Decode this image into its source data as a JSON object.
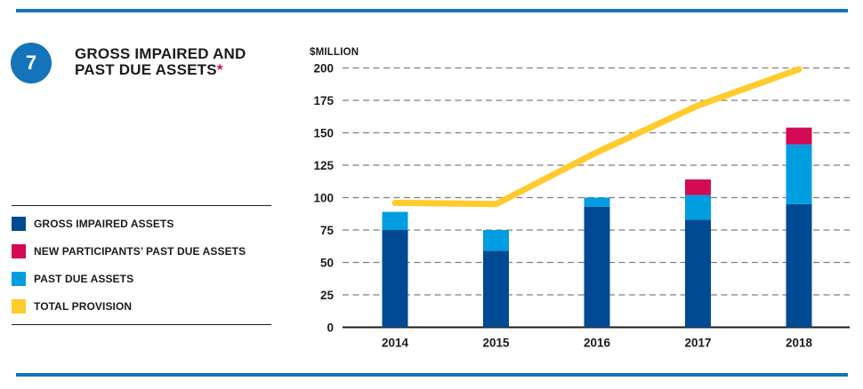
{
  "header": {
    "number": "7",
    "title_line1": "GROSS IMPAIRED AND",
    "title_line2": "PAST DUE ASSETS",
    "title_asterisk": "*"
  },
  "legend": {
    "items": [
      {
        "label": "GROSS IMPAIRED ASSETS",
        "color": "#004a94"
      },
      {
        "label": "NEW PARTICIPANTS’ PAST DUE ASSETS",
        "color": "#d40a55"
      },
      {
        "label": "PAST DUE ASSETS",
        "color": "#009de0"
      },
      {
        "label": "TOTAL PROVISION",
        "color": "#ffcb2d"
      }
    ]
  },
  "chart_data": {
    "type": "bar",
    "subtype": "stacked-bars-with-line-overlay",
    "title": "GROSS IMPAIRED AND PAST DUE ASSETS*",
    "unit_label": "$MILLION",
    "categories": [
      "2014",
      "2015",
      "2016",
      "2017",
      "2018"
    ],
    "series": [
      {
        "name": "GROSS IMPAIRED ASSETS",
        "type": "bar",
        "color": "#004a94",
        "values": [
          75,
          59,
          93,
          83,
          95
        ]
      },
      {
        "name": "PAST DUE ASSETS",
        "type": "bar",
        "color": "#009de0",
        "values": [
          14,
          16,
          7,
          19,
          46
        ]
      },
      {
        "name": "NEW PARTICIPANTS’ PAST DUE ASSETS",
        "type": "bar",
        "color": "#d40a55",
        "values": [
          0,
          0,
          0,
          12,
          13
        ]
      },
      {
        "name": "TOTAL PROVISION",
        "type": "line",
        "color": "#ffcb2d",
        "values": [
          96,
          95,
          135,
          171,
          199
        ]
      }
    ],
    "stack_totals": [
      89,
      75,
      100,
      114,
      154
    ],
    "y_axis": {
      "min": 0,
      "max": 200,
      "tick_step": 25,
      "ticks": [
        0,
        25,
        50,
        75,
        100,
        125,
        150,
        175,
        200
      ]
    },
    "x_axis": {
      "label": ""
    },
    "grid": "dashed horizontal gridlines",
    "legend_position": "left"
  },
  "colors": {
    "accent_rule_blue": "#1473b9",
    "gridline_gray": "#7f7f7f",
    "text_black": "#1b1b1b",
    "asterisk_pink": "#d40a55"
  }
}
